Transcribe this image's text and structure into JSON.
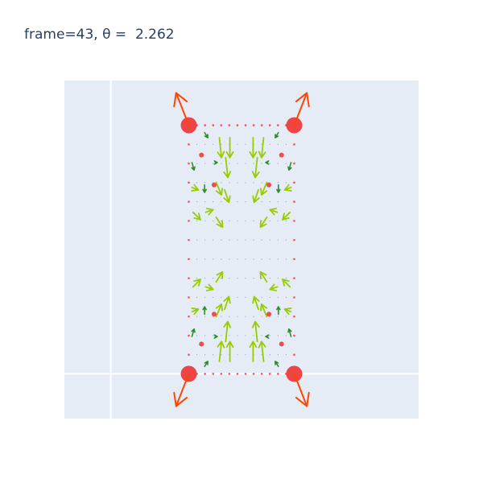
{
  "title": "frame=43, θ =  2.262",
  "colors": {
    "plot_bg": "#e5ecf6",
    "zero_line": "#ffffff",
    "dot": "#ef3b3b",
    "big_arrow": "#ff4500",
    "arrow_light": "#99cc00",
    "arrow_dark": "#2e8b2e",
    "tiny": "#1f4e8c"
  },
  "chart_data": {
    "type": "quiver",
    "title": "frame=43, θ =  2.262",
    "xlim": [
      -1.18,
      2.18
    ],
    "ylim": [
      -0.18,
      1.18
    ],
    "grid": false,
    "legend": "none",
    "nodes": [
      {
        "x": 0.0,
        "y": 0.0,
        "size": "large"
      },
      {
        "x": 1.0,
        "y": 0.0,
        "size": "large"
      },
      {
        "x": 0.0,
        "y": 1.0,
        "size": "large"
      },
      {
        "x": 1.0,
        "y": 1.0,
        "size": "large"
      },
      {
        "x": 0.12,
        "y": 0.12,
        "size": "medium"
      },
      {
        "x": 0.88,
        "y": 0.12,
        "size": "medium"
      },
      {
        "x": 0.12,
        "y": 0.88,
        "size": "medium"
      },
      {
        "x": 0.88,
        "y": 0.88,
        "size": "medium"
      },
      {
        "x": 0.24,
        "y": 0.24,
        "size": "medium"
      },
      {
        "x": 0.76,
        "y": 0.24,
        "size": "medium"
      },
      {
        "x": 0.24,
        "y": 0.76,
        "size": "medium"
      },
      {
        "x": 0.76,
        "y": 0.76,
        "size": "medium"
      }
    ],
    "large_arrows": [
      {
        "x": 0.0,
        "y": 0.0,
        "u": -0.12,
        "v": -0.13
      },
      {
        "x": 1.0,
        "y": 0.0,
        "u": 0.12,
        "v": -0.13
      },
      {
        "x": 0.0,
        "y": 1.0,
        "u": -0.12,
        "v": 0.13
      },
      {
        "x": 1.0,
        "y": 1.0,
        "u": 0.12,
        "v": 0.13
      }
    ],
    "field_arrows": [
      {
        "x": 0.29,
        "y": 0.05,
        "u": 0.02,
        "v": 0.08,
        "c": "light"
      },
      {
        "x": 0.39,
        "y": 0.05,
        "u": 0.0,
        "v": 0.08,
        "c": "light"
      },
      {
        "x": 0.61,
        "y": 0.05,
        "u": 0.0,
        "v": 0.08,
        "c": "light"
      },
      {
        "x": 0.71,
        "y": 0.05,
        "u": -0.02,
        "v": 0.08,
        "c": "light"
      },
      {
        "x": 0.35,
        "y": 0.13,
        "u": 0.02,
        "v": 0.08,
        "c": "light"
      },
      {
        "x": 0.65,
        "y": 0.13,
        "u": -0.02,
        "v": 0.08,
        "c": "light"
      },
      {
        "x": 0.26,
        "y": 0.23,
        "u": 0.05,
        "v": 0.05,
        "c": "light"
      },
      {
        "x": 0.34,
        "y": 0.26,
        "u": 0.04,
        "v": 0.05,
        "c": "light"
      },
      {
        "x": 0.66,
        "y": 0.26,
        "u": -0.04,
        "v": 0.05,
        "c": "light"
      },
      {
        "x": 0.74,
        "y": 0.23,
        "u": -0.05,
        "v": 0.05,
        "c": "light"
      },
      {
        "x": 0.03,
        "y": 0.25,
        "u": 0.06,
        "v": 0.01,
        "c": "light"
      },
      {
        "x": 0.97,
        "y": 0.25,
        "u": -0.06,
        "v": 0.01,
        "c": "light"
      },
      {
        "x": 0.04,
        "y": 0.35,
        "u": 0.07,
        "v": 0.03,
        "c": "light"
      },
      {
        "x": 0.96,
        "y": 0.35,
        "u": -0.07,
        "v": 0.03,
        "c": "light"
      },
      {
        "x": 0.16,
        "y": 0.35,
        "u": 0.07,
        "v": -0.01,
        "c": "light"
      },
      {
        "x": 0.84,
        "y": 0.35,
        "u": -0.07,
        "v": -0.01,
        "c": "light"
      },
      {
        "x": 0.26,
        "y": 0.37,
        "u": 0.06,
        "v": 0.04,
        "c": "light"
      },
      {
        "x": 0.74,
        "y": 0.37,
        "u": -0.06,
        "v": 0.04,
        "c": "light"
      },
      {
        "x": 0.03,
        "y": 0.75,
        "u": 0.06,
        "v": -0.01,
        "c": "light"
      },
      {
        "x": 0.97,
        "y": 0.75,
        "u": -0.06,
        "v": -0.01,
        "c": "light"
      },
      {
        "x": 0.04,
        "y": 0.65,
        "u": 0.07,
        "v": -0.03,
        "c": "light"
      },
      {
        "x": 0.96,
        "y": 0.65,
        "u": -0.07,
        "v": -0.03,
        "c": "light"
      },
      {
        "x": 0.16,
        "y": 0.65,
        "u": 0.07,
        "v": 0.01,
        "c": "light"
      },
      {
        "x": 0.84,
        "y": 0.65,
        "u": -0.07,
        "v": 0.01,
        "c": "light"
      },
      {
        "x": 0.26,
        "y": 0.63,
        "u": 0.06,
        "v": -0.04,
        "c": "light"
      },
      {
        "x": 0.74,
        "y": 0.63,
        "u": -0.06,
        "v": -0.04,
        "c": "light"
      },
      {
        "x": 0.29,
        "y": 0.95,
        "u": 0.02,
        "v": -0.08,
        "c": "light"
      },
      {
        "x": 0.39,
        "y": 0.95,
        "u": 0.0,
        "v": -0.08,
        "c": "light"
      },
      {
        "x": 0.61,
        "y": 0.95,
        "u": 0.0,
        "v": -0.08,
        "c": "light"
      },
      {
        "x": 0.71,
        "y": 0.95,
        "u": -0.02,
        "v": -0.08,
        "c": "light"
      },
      {
        "x": 0.35,
        "y": 0.87,
        "u": 0.02,
        "v": -0.08,
        "c": "light"
      },
      {
        "x": 0.65,
        "y": 0.87,
        "u": -0.02,
        "v": -0.08,
        "c": "light"
      },
      {
        "x": 0.26,
        "y": 0.77,
        "u": 0.05,
        "v": -0.05,
        "c": "light"
      },
      {
        "x": 0.34,
        "y": 0.74,
        "u": 0.04,
        "v": -0.05,
        "c": "light"
      },
      {
        "x": 0.66,
        "y": 0.74,
        "u": -0.04,
        "v": -0.05,
        "c": "light"
      },
      {
        "x": 0.74,
        "y": 0.77,
        "u": -0.05,
        "v": -0.05,
        "c": "light"
      },
      {
        "x": 0.15,
        "y": 0.03,
        "u": 0.03,
        "v": 0.02,
        "c": "dark"
      },
      {
        "x": 0.85,
        "y": 0.03,
        "u": -0.03,
        "v": 0.02,
        "c": "dark"
      },
      {
        "x": 0.15,
        "y": 0.97,
        "u": 0.03,
        "v": -0.02,
        "c": "dark"
      },
      {
        "x": 0.85,
        "y": 0.97,
        "u": -0.03,
        "v": -0.02,
        "c": "dark"
      },
      {
        "x": 0.03,
        "y": 0.15,
        "u": 0.02,
        "v": 0.03,
        "c": "dark"
      },
      {
        "x": 0.97,
        "y": 0.15,
        "u": -0.02,
        "v": 0.03,
        "c": "dark"
      },
      {
        "x": 0.03,
        "y": 0.85,
        "u": 0.02,
        "v": -0.03,
        "c": "dark"
      },
      {
        "x": 0.97,
        "y": 0.85,
        "u": -0.02,
        "v": -0.03,
        "c": "dark"
      },
      {
        "x": 0.25,
        "y": 0.15,
        "u": 0.02,
        "v": 0.0,
        "c": "dark"
      },
      {
        "x": 0.75,
        "y": 0.15,
        "u": -0.02,
        "v": 0.0,
        "c": "dark"
      },
      {
        "x": 0.25,
        "y": 0.85,
        "u": 0.02,
        "v": 0.0,
        "c": "dark"
      },
      {
        "x": 0.75,
        "y": 0.85,
        "u": -0.02,
        "v": 0.0,
        "c": "dark"
      },
      {
        "x": 0.15,
        "y": 0.24,
        "u": 0.0,
        "v": 0.03,
        "c": "dark"
      },
      {
        "x": 0.85,
        "y": 0.24,
        "u": 0.0,
        "v": 0.03,
        "c": "dark"
      },
      {
        "x": 0.15,
        "y": 0.76,
        "u": 0.0,
        "v": -0.03,
        "c": "dark"
      },
      {
        "x": 0.85,
        "y": 0.76,
        "u": 0.0,
        "v": -0.03,
        "c": "dark"
      }
    ]
  }
}
